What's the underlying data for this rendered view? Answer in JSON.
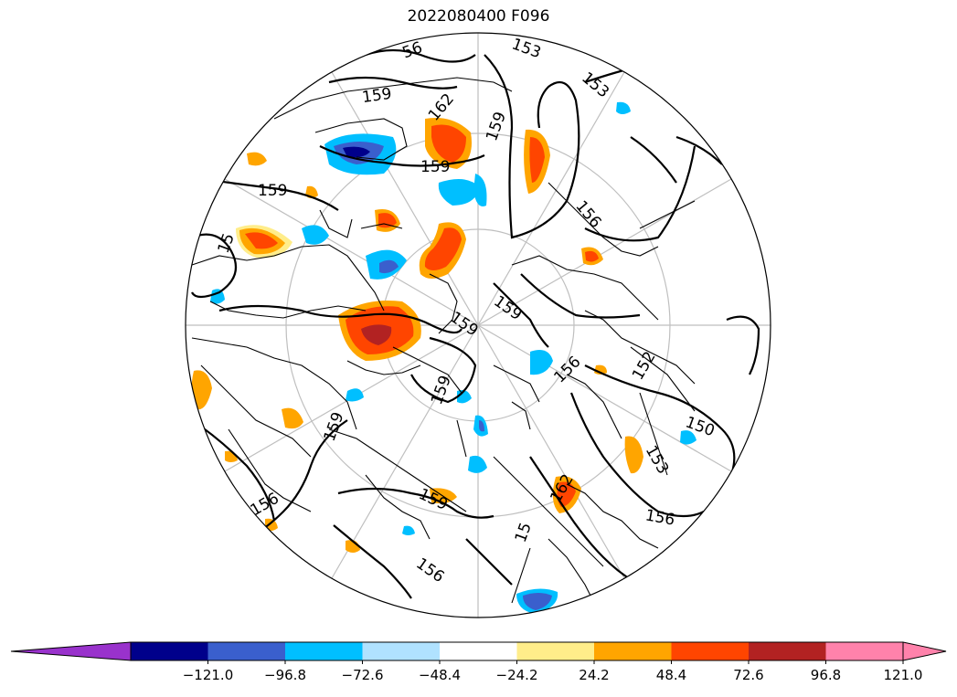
{
  "title": "2022080400 F096",
  "contour_labels": [
    "56",
    "153",
    "153",
    "159",
    "162",
    "159",
    "159",
    "159",
    "15",
    "156",
    "159",
    "159",
    "156",
    "159",
    "159",
    "156",
    "150",
    "153",
    "152",
    "156",
    "156",
    "15",
    "159",
    "162"
  ],
  "colorbar": {
    "ticks": [
      "−121.0",
      "−96.8",
      "−72.6",
      "−48.4",
      "−24.2",
      "24.2",
      "48.4",
      "72.6",
      "96.8",
      "121.0"
    ],
    "colors": {
      "extend_low": "#9932cc",
      "levels": [
        "#00008b",
        "#3a5fcd",
        "#00bfff",
        "#b0e2ff",
        "#ffffff",
        "#ffed8a",
        "#ffa500",
        "#ff4500",
        "#b22222",
        "#ff82ab"
      ],
      "extend_high": "#ff82ab"
    }
  }
}
